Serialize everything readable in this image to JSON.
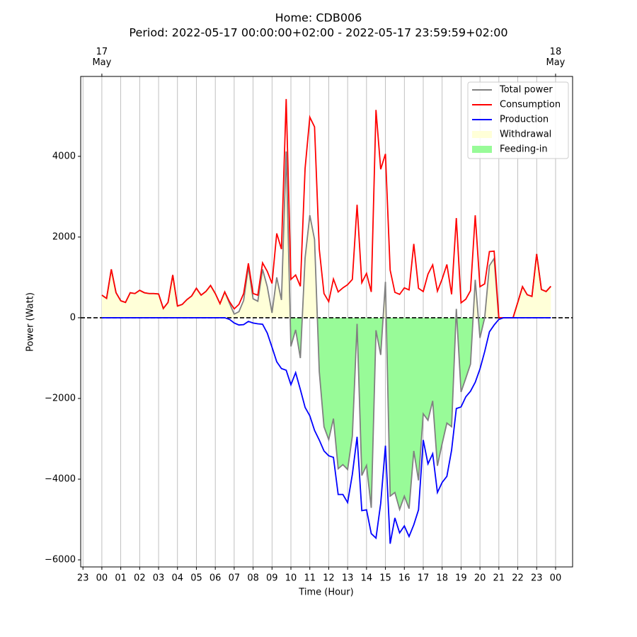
{
  "chart_data": {
    "type": "line",
    "title": "Home: CDB006",
    "subtitle": "Period: 2022-05-17 00:00:00+02:00 - 2022-05-17 23:59:59+02:00",
    "x_label": "Time (Hour)",
    "y_label": "Power (Watt)",
    "x": [
      0,
      0.25,
      0.5,
      0.75,
      1,
      1.25,
      1.5,
      1.75,
      2,
      2.25,
      2.5,
      2.75,
      3,
      3.25,
      3.5,
      3.75,
      4,
      4.25,
      4.5,
      4.75,
      5,
      5.25,
      5.5,
      5.75,
      6,
      6.25,
      6.5,
      6.75,
      7,
      7.25,
      7.5,
      7.75,
      8,
      8.25,
      8.5,
      8.75,
      9,
      9.25,
      9.5,
      9.75,
      10,
      10.25,
      10.5,
      10.75,
      11,
      11.25,
      11.5,
      11.75,
      12,
      12.25,
      12.5,
      12.75,
      13,
      13.25,
      13.5,
      13.75,
      14,
      14.25,
      14.5,
      14.75,
      15,
      15.25,
      15.5,
      15.75,
      16,
      16.25,
      16.5,
      16.75,
      17,
      17.25,
      17.5,
      17.75,
      18,
      18.25,
      18.5,
      18.75,
      19,
      19.25,
      19.5,
      19.75,
      20,
      20.25,
      20.5,
      20.75,
      21,
      21.25,
      21.5,
      21.75,
      22,
      22.25,
      22.5,
      22.75,
      23,
      23.25,
      23.5,
      23.75
    ],
    "series": [
      {
        "name": "Total power",
        "color": "#808080",
        "values": [
          560,
          480,
          1200,
          620,
          420,
          380,
          620,
          600,
          680,
          620,
          600,
          600,
          590,
          230,
          380,
          1060,
          290,
          330,
          450,
          540,
          730,
          560,
          650,
          800,
          600,
          350,
          640,
          360,
          90,
          150,
          430,
          1260,
          470,
          410,
          1200,
          770,
          120,
          1000,
          440,
          4120,
          -710,
          -300,
          -1000,
          1480,
          2540,
          1940,
          -1330,
          -2700,
          -3020,
          -2500,
          -3740,
          -3640,
          -3760,
          -2930,
          -150,
          -3910,
          -3660,
          -4710,
          -310,
          -920,
          890,
          -4420,
          -4330,
          -4750,
          -4420,
          -4730,
          -3300,
          -4030,
          -2380,
          -2540,
          -2060,
          -3670,
          -3120,
          -2610,
          -2700,
          220,
          -1840,
          -1500,
          -1150,
          940,
          -500,
          0,
          1290,
          1470,
          -40,
          0,
          0,
          0,
          380,
          770,
          570,
          530,
          1580,
          700,
          650,
          780
        ]
      },
      {
        "name": "Consumption",
        "color": "#ff0000",
        "values": [
          560,
          480,
          1200,
          620,
          420,
          380,
          620,
          600,
          680,
          620,
          600,
          600,
          590,
          230,
          380,
          1060,
          290,
          330,
          450,
          540,
          730,
          560,
          650,
          800,
          600,
          350,
          640,
          400,
          220,
          330,
          600,
          1350,
          600,
          560,
          1360,
          1150,
          850,
          2090,
          1700,
          5420,
          950,
          1060,
          780,
          3700,
          4970,
          4730,
          1700,
          600,
          400,
          960,
          640,
          740,
          820,
          950,
          2800,
          870,
          1100,
          640,
          5150,
          3680,
          4060,
          1180,
          630,
          580,
          740,
          690,
          1830,
          730,
          650,
          1080,
          1310,
          660,
          960,
          1320,
          580,
          2470,
          370,
          460,
          670,
          2540,
          770,
          840,
          1640,
          1650,
          0,
          0,
          0,
          0,
          380,
          770,
          570,
          530,
          1580,
          700,
          650,
          780
        ]
      },
      {
        "name": "Production",
        "color": "#0000ff",
        "values": [
          0,
          0,
          0,
          0,
          0,
          0,
          0,
          0,
          0,
          0,
          0,
          0,
          0,
          0,
          0,
          0,
          0,
          0,
          0,
          0,
          0,
          0,
          0,
          0,
          0,
          0,
          0,
          -40,
          -130,
          -180,
          -170,
          -90,
          -130,
          -150,
          -160,
          -380,
          -730,
          -1090,
          -1260,
          -1300,
          -1660,
          -1360,
          -1780,
          -2220,
          -2430,
          -2790,
          -3030,
          -3300,
          -3420,
          -3460,
          -4380,
          -4380,
          -4580,
          -3880,
          -2950,
          -4780,
          -4760,
          -5350,
          -5460,
          -4600,
          -3170,
          -5600,
          -4960,
          -5330,
          -5160,
          -5420,
          -5130,
          -4760,
          -3030,
          -3620,
          -3370,
          -4330,
          -4080,
          -3930,
          -3280,
          -2250,
          -2210,
          -1960,
          -1820,
          -1600,
          -1270,
          -840,
          -350,
          -180,
          -40,
          0,
          0,
          0,
          0,
          0,
          0,
          0,
          0,
          0,
          0,
          0
        ]
      }
    ],
    "fills": [
      {
        "name": "Withdrawal",
        "color": "#ffffd8"
      },
      {
        "name": "Feeding-in",
        "color": "#98fb98"
      }
    ],
    "hline": 0,
    "xlim": [
      -1.12,
      24.9
    ],
    "ylim": [
      -6175,
      5980
    ],
    "xticks": [
      {
        "value": -1,
        "label": "23"
      },
      {
        "value": 0,
        "label": "00"
      },
      {
        "value": 1,
        "label": "01"
      },
      {
        "value": 2,
        "label": "02"
      },
      {
        "value": 3,
        "label": "03"
      },
      {
        "value": 4,
        "label": "04"
      },
      {
        "value": 5,
        "label": "05"
      },
      {
        "value": 6,
        "label": "06"
      },
      {
        "value": 7,
        "label": "07"
      },
      {
        "value": 8,
        "label": "08"
      },
      {
        "value": 9,
        "label": "09"
      },
      10,
      11,
      12,
      13,
      14,
      15,
      16,
      17,
      18,
      19,
      20,
      21,
      22,
      23,
      {
        "value": 24,
        "label": "00"
      }
    ],
    "top_xticks": [
      {
        "value": 0,
        "label": "17\nMay"
      },
      {
        "value": 24,
        "label": "18\nMay"
      }
    ],
    "yticks": [
      {
        "value": -6000,
        "label": "−6000"
      },
      {
        "value": -4000,
        "label": "−4000"
      },
      {
        "value": -2000,
        "label": "−2000"
      },
      0,
      2000,
      4000
    ],
    "grid": "x",
    "legend": "upper right"
  }
}
